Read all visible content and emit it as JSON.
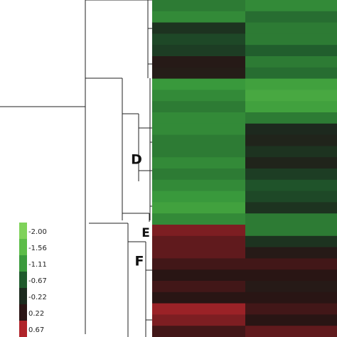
{
  "chart_data": {
    "type": "heatmap",
    "values": [
      [
        -0.9,
        -1.0
      ],
      [
        -1.0,
        -0.8
      ],
      [
        -0.3,
        -0.9
      ],
      [
        -0.5,
        -0.9
      ],
      [
        -0.4,
        -0.7
      ],
      [
        0.1,
        -0.9
      ],
      [
        0.05,
        -0.8
      ],
      [
        -1.1,
        -1.2
      ],
      [
        -1.0,
        -1.3
      ],
      [
        -0.9,
        -1.2
      ],
      [
        -1.0,
        -0.9
      ],
      [
        -1.0,
        -0.2
      ],
      [
        -0.9,
        -0.1
      ],
      [
        -0.9,
        -0.3
      ],
      [
        -1.0,
        -0.1
      ],
      [
        -0.9,
        -0.4
      ],
      [
        -1.0,
        -0.6
      ],
      [
        -1.1,
        -0.5
      ],
      [
        -1.2,
        -0.3
      ],
      [
        -1.0,
        -0.9
      ],
      [
        0.5,
        -0.9
      ],
      [
        0.4,
        -0.3
      ],
      [
        0.4,
        0.1
      ],
      [
        0.3,
        0.3
      ],
      [
        0.2,
        0.2
      ],
      [
        0.3,
        0.1
      ],
      [
        0.2,
        0.2
      ],
      [
        0.6,
        0.3
      ],
      [
        0.5,
        0.2
      ],
      [
        0.3,
        0.4
      ]
    ],
    "cluster_labels": [
      "D",
      "E",
      "F"
    ],
    "legend": {
      "ticks": [
        {
          "value": -2,
          "label": "-2.00"
        },
        {
          "value": -1.56,
          "label": "-1.56"
        },
        {
          "value": -1.11,
          "label": "-1.11"
        },
        {
          "value": -0.67,
          "label": "-0.67"
        },
        {
          "value": -0.22,
          "label": "-0.22"
        },
        {
          "value": 0.22,
          "label": "0.22"
        },
        {
          "value": 0.67,
          "label": "0.67"
        }
      ],
      "colors": [
        "#7fd25a",
        "#5cbc48",
        "#3a9a3c",
        "#1f5a2c",
        "#1c2a1e",
        "#2a1414",
        "#b0242a"
      ]
    }
  }
}
